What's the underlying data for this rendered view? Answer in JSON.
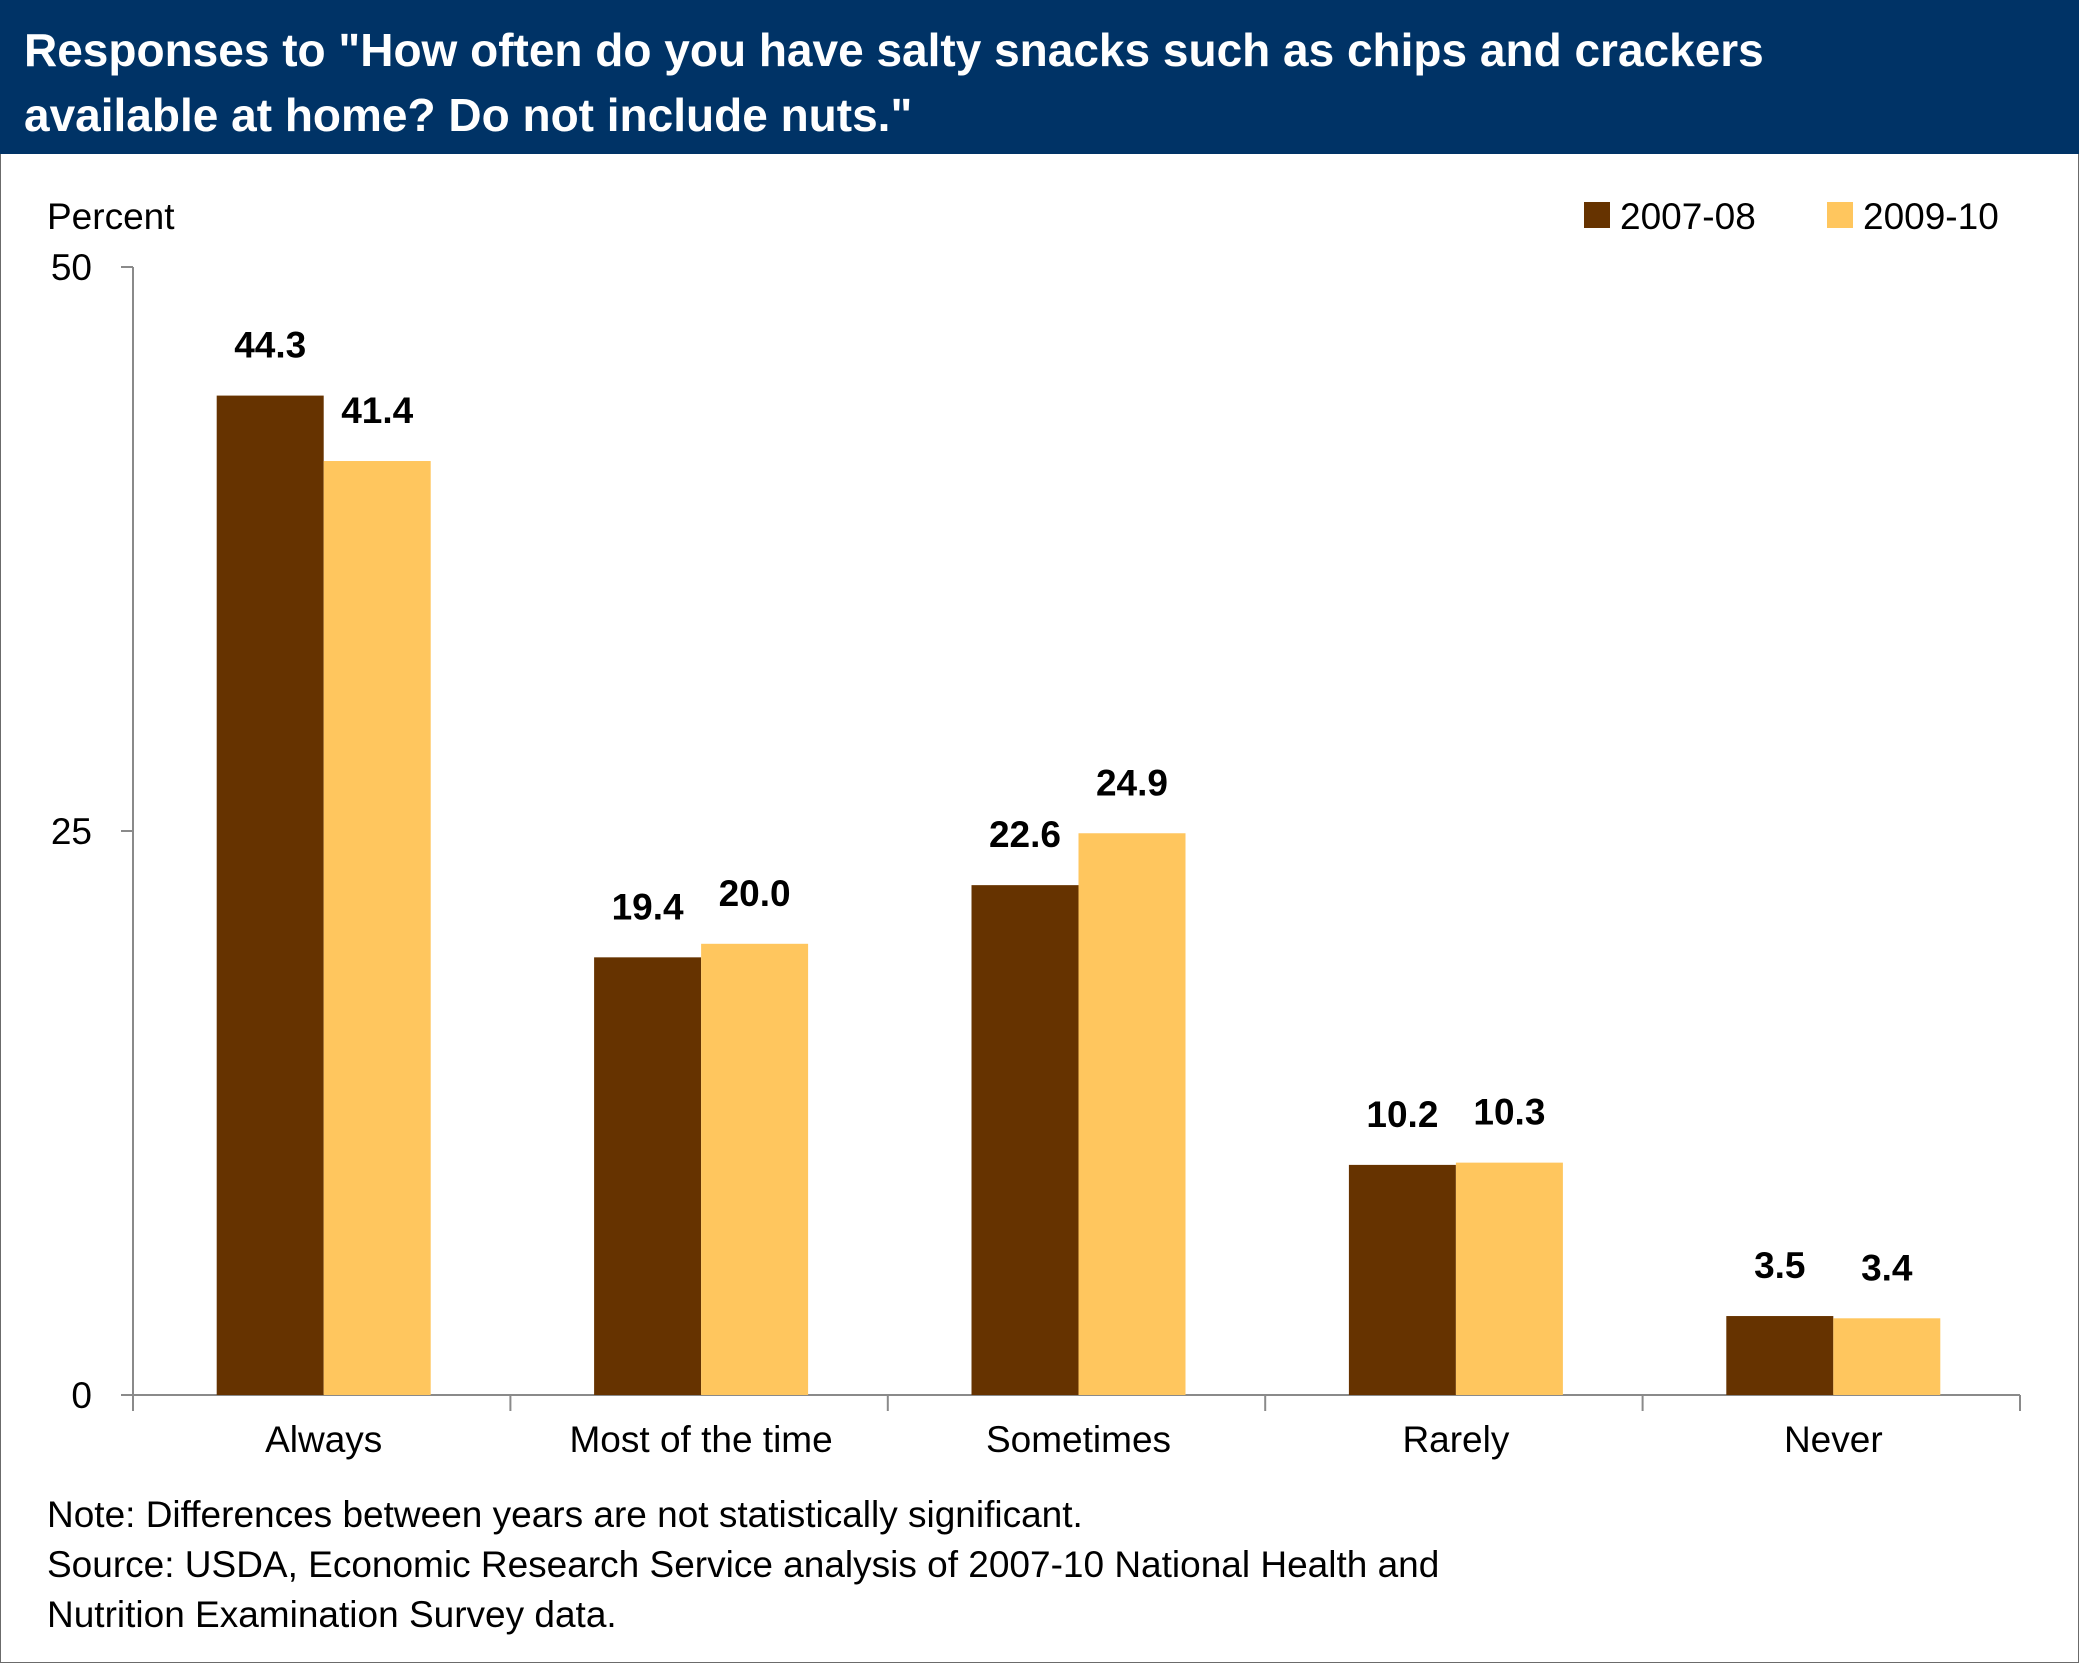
{
  "header": {
    "title": "Responses to \"How often do you have salty snacks such as chips and crackers available at home? Do not include nuts.\""
  },
  "chart_data": {
    "type": "bar",
    "title": "Responses to \"How often do you have salty snacks such as chips and crackers available at home? Do not include nuts.\"",
    "xlabel": "",
    "ylabel": "Percent",
    "ylim": [
      0,
      50
    ],
    "yticks": [
      "0",
      "25",
      "50"
    ],
    "categories": [
      "Always",
      "Most of the time",
      "Sometimes",
      "Rarely",
      "Never"
    ],
    "series": [
      {
        "name": "2007-08",
        "values": [
          44.3,
          19.4,
          22.6,
          10.2,
          3.5
        ],
        "labels": [
          "44.3",
          "19.4",
          "22.6",
          "10.2",
          "3.5"
        ],
        "color": "#663300"
      },
      {
        "name": "2009-10",
        "values": [
          41.4,
          20.0,
          24.9,
          10.3,
          3.4
        ],
        "labels": [
          "41.4",
          "20.0",
          "24.9",
          "10.3",
          "3.4"
        ],
        "color": "#FFC65E"
      }
    ],
    "legend_position": "top-right",
    "grid": false
  },
  "footnotes": {
    "note": "Note: Differences between years are not statistically significant.",
    "source_line1": "Source: USDA, Economic Research Service analysis of 2007-10 National Health and",
    "source_line2": "Nutrition Examination Survey data."
  },
  "colors": {
    "header_bg": "#003366",
    "series_2007_08": "#663300",
    "series_2009_10": "#FFC65E"
  }
}
